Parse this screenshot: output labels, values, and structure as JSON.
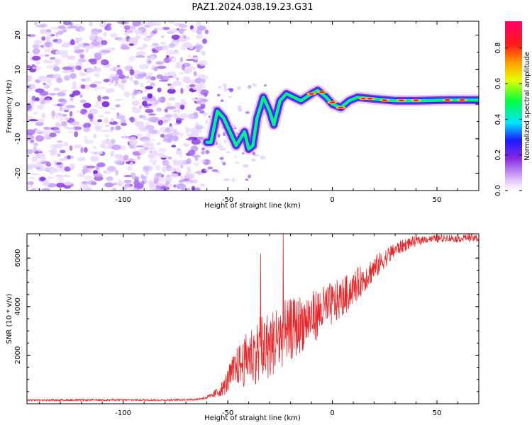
{
  "title": "PAZ1.2024.038.19.23.G31",
  "chart_data": [
    {
      "type": "heatmap",
      "name": "spectrogram",
      "xlabel": "Height of straight line (km)",
      "ylabel": "Frequency (Hz)",
      "xlim": [
        -146,
        70
      ],
      "ylim": [
        -25,
        24
      ],
      "xticks": [
        -100,
        -50,
        0,
        50
      ],
      "yticks": [
        -20,
        -10,
        0,
        10,
        20
      ],
      "noise_region_x": [
        -146,
        -60
      ],
      "signal_track": [
        {
          "x": -60,
          "y": -11
        },
        {
          "x": -58,
          "y": -11
        },
        {
          "x": -55,
          "y": -2
        },
        {
          "x": -52,
          "y": -4
        },
        {
          "x": -49,
          "y": -8
        },
        {
          "x": -46,
          "y": -12
        },
        {
          "x": -42,
          "y": -8
        },
        {
          "x": -40,
          "y": -13
        },
        {
          "x": -38,
          "y": -12
        },
        {
          "x": -36,
          "y": -4
        },
        {
          "x": -33,
          "y": 2
        },
        {
          "x": -30,
          "y": -2
        },
        {
          "x": -28,
          "y": -6
        },
        {
          "x": -25,
          "y": 1
        },
        {
          "x": -22,
          "y": 3
        },
        {
          "x": -15,
          "y": 1
        },
        {
          "x": -10,
          "y": 3
        },
        {
          "x": -7,
          "y": 4
        },
        {
          "x": -3,
          "y": 2
        },
        {
          "x": 0,
          "y": 0
        },
        {
          "x": 4,
          "y": -1
        },
        {
          "x": 8,
          "y": 1
        },
        {
          "x": 12,
          "y": 2
        },
        {
          "x": 20,
          "y": 1.5
        },
        {
          "x": 30,
          "y": 1
        },
        {
          "x": 40,
          "y": 1
        },
        {
          "x": 55,
          "y": 1.2
        },
        {
          "x": 70,
          "y": 1.2
        }
      ],
      "colorbar": {
        "label": "Normalized spectral amplitude",
        "range": [
          0,
          0.95
        ],
        "ticks": [
          "0.0",
          "0.2",
          "0.4",
          "0.6",
          "0.8"
        ],
        "tick_values": [
          0.0,
          0.2,
          0.4,
          0.6,
          0.8
        ],
        "stops": [
          {
            "v": 0.0,
            "color": "#ffffff"
          },
          {
            "v": 0.05,
            "color": "#e6ccff"
          },
          {
            "v": 0.18,
            "color": "#8a2be2"
          },
          {
            "v": 0.28,
            "color": "#1a1aff"
          },
          {
            "v": 0.38,
            "color": "#00e5ff"
          },
          {
            "v": 0.5,
            "color": "#00ff40"
          },
          {
            "v": 0.62,
            "color": "#e6ff00"
          },
          {
            "v": 0.72,
            "color": "#ff9900"
          },
          {
            "v": 0.82,
            "color": "#ff1a1a"
          },
          {
            "v": 0.95,
            "color": "#ff0066"
          }
        ]
      }
    },
    {
      "type": "line",
      "name": "snr",
      "xlabel": "Height of straight line (km)",
      "ylabel": "SNR (10 * v/v)",
      "xlim": [
        -146,
        70
      ],
      "ylim": [
        0,
        7000
      ],
      "xticks": [
        -100,
        -50,
        0,
        50
      ],
      "yticks": [
        2000,
        4000,
        6000
      ],
      "color": "#e8282a",
      "series": [
        {
          "x": [
            -146,
            -120,
            -100,
            -80,
            -65,
            -58,
            -52,
            -48,
            -45,
            -42,
            -40,
            -37,
            -35,
            -32,
            -30,
            -27,
            -25,
            -22,
            -20,
            -17,
            -15,
            -12,
            -10,
            -7,
            -5,
            -2,
            0,
            3,
            5,
            8,
            10,
            13,
            15,
            18,
            20,
            23,
            25,
            28,
            30,
            35,
            40,
            45,
            50,
            55,
            60,
            65,
            70
          ],
          "y": [
            150,
            150,
            160,
            150,
            180,
            300,
            650,
            1250,
            1600,
            1700,
            2050,
            2050,
            2150,
            2450,
            2350,
            2650,
            2750,
            2950,
            3050,
            3150,
            3300,
            3450,
            3550,
            3700,
            3850,
            4000,
            4100,
            4250,
            4400,
            4600,
            4750,
            5000,
            5150,
            5400,
            5550,
            5800,
            5950,
            6200,
            6350,
            6550,
            6700,
            6780,
            6800,
            6820,
            6800,
            6850,
            6800
          ],
          "scatter": [
            0,
            0,
            0,
            0,
            0,
            100,
            350,
            650,
            850,
            1000,
            1200,
            1250,
            1350,
            1400,
            1400,
            1450,
            1400,
            1350,
            1300,
            1250,
            1200,
            1150,
            1100,
            1050,
            1000,
            950,
            900,
            850,
            800,
            750,
            700,
            650,
            600,
            550,
            500,
            450,
            400,
            350,
            300,
            250,
            200,
            150,
            150,
            150,
            150,
            150,
            150
          ]
        }
      ]
    }
  ]
}
